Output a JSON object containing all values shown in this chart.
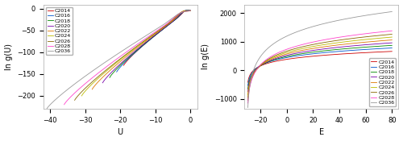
{
  "labels": [
    "C2014",
    "C2016",
    "C2018",
    "C2020",
    "C2022",
    "C2024",
    "C2026",
    "C2028",
    "C2036"
  ],
  "colors": [
    "#cc0000",
    "#0055cc",
    "#008800",
    "#7700aa",
    "#dd7700",
    "#bbbb00",
    "#886600",
    "#ff44cc",
    "#999999"
  ],
  "left_xlim": [
    -42,
    2
  ],
  "left_ylim": [
    -230,
    10
  ],
  "left_xlabel": "U",
  "left_ylabel": "ln g(U)",
  "right_xlim": [
    -32,
    85
  ],
  "right_ylim": [
    -1350,
    2300
  ],
  "right_xlabel": "E",
  "right_ylabel": "ln g(E)",
  "chain_lengths": [
    14,
    16,
    18,
    20,
    22,
    24,
    26,
    28,
    36
  ],
  "U_mins": [
    -19,
    -21,
    -23,
    -25,
    -28,
    -31,
    -33,
    -36,
    -41
  ],
  "lng_mins": [
    -130,
    -145,
    -158,
    -170,
    -185,
    -200,
    -210,
    -220,
    -230
  ],
  "peak_heights": [
    8,
    10,
    12,
    13,
    14,
    14,
    13,
    12,
    10
  ],
  "E_starts": [
    -29.5,
    -29.5,
    -29.5,
    -29.5,
    -29.5,
    -29.5,
    -29.5,
    -29.5,
    -29.5
  ],
  "E_floor": -30.2,
  "E_max": 80.0,
  "lng_E_min": [
    -420,
    -530,
    -650,
    -750,
    -850,
    -950,
    -1050,
    -1150,
    -1300
  ],
  "lng_E_max": [
    660,
    780,
    870,
    960,
    1060,
    1160,
    1260,
    1380,
    2050
  ],
  "fig_width": 5.0,
  "fig_height": 1.75,
  "dpi": 100
}
